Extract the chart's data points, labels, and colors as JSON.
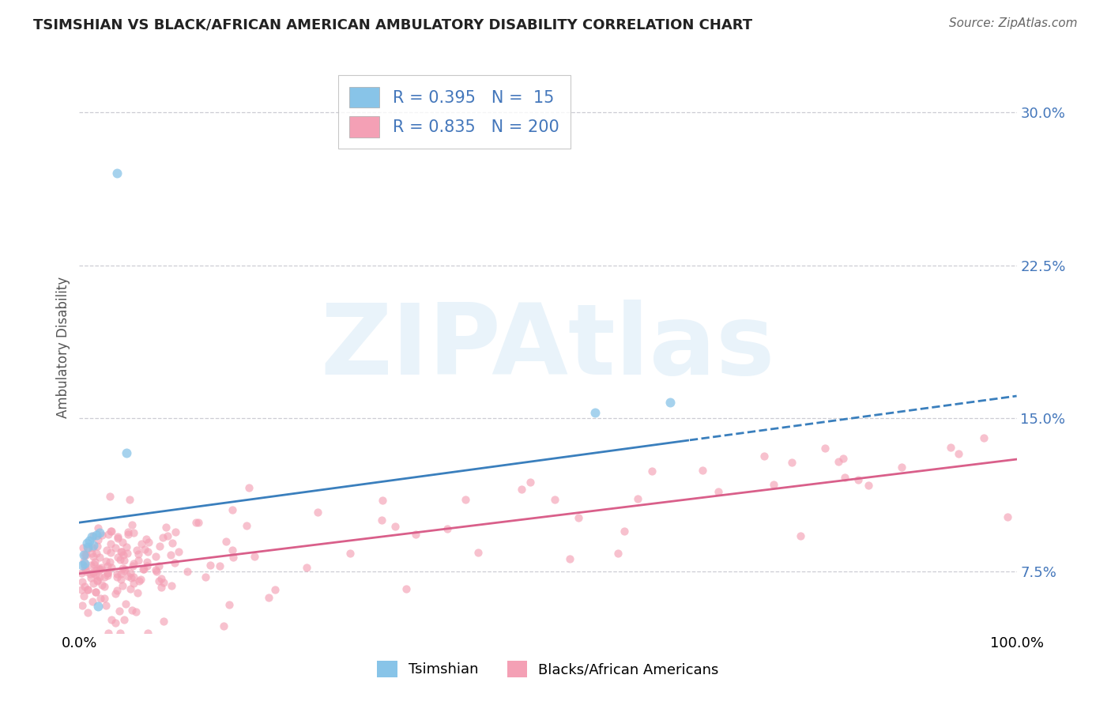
{
  "title": "TSIMSHIAN VS BLACK/AFRICAN AMERICAN AMBULATORY DISABILITY CORRELATION CHART",
  "source": "Source: ZipAtlas.com",
  "ylabel": "Ambulatory Disability",
  "yticks": [
    0.075,
    0.15,
    0.225,
    0.3
  ],
  "ytick_labels": [
    "7.5%",
    "15.0%",
    "22.5%",
    "30.0%"
  ],
  "xlim": [
    0.0,
    1.0
  ],
  "ylim": [
    0.045,
    0.325
  ],
  "legend_r_tsimshian": "0.395",
  "legend_n_tsimshian": "15",
  "legend_r_black": "0.835",
  "legend_n_black": "200",
  "label_tsimshian": "Tsimshian",
  "label_black": "Blacks/African Americans",
  "blue_scatter_color": "#88c4e8",
  "pink_scatter_color": "#f4a0b5",
  "blue_line_color": "#3a7fbd",
  "pink_line_color": "#d95f8a",
  "axis_label_color": "#4477bb",
  "watermark": "ZIPAtlas",
  "background_color": "#ffffff",
  "grid_color": "#c8c8d0",
  "blue_line_intercept": 0.099,
  "blue_line_slope": 0.062,
  "blue_dash_cutoff": 0.65,
  "pink_line_intercept": 0.074,
  "pink_line_slope": 0.056,
  "tsimshian_x": [
    0.003,
    0.005,
    0.006,
    0.008,
    0.009,
    0.011,
    0.013,
    0.015,
    0.018,
    0.022,
    0.55,
    0.63,
    0.04,
    0.05,
    0.02
  ],
  "tsimshian_y": [
    0.078,
    0.083,
    0.079,
    0.089,
    0.087,
    0.09,
    0.092,
    0.088,
    0.093,
    0.094,
    0.153,
    0.158,
    0.27,
    0.133,
    0.058
  ],
  "black_seed": 42,
  "title_fontsize": 13,
  "source_fontsize": 11,
  "tick_fontsize": 13,
  "legend_fontsize": 15
}
